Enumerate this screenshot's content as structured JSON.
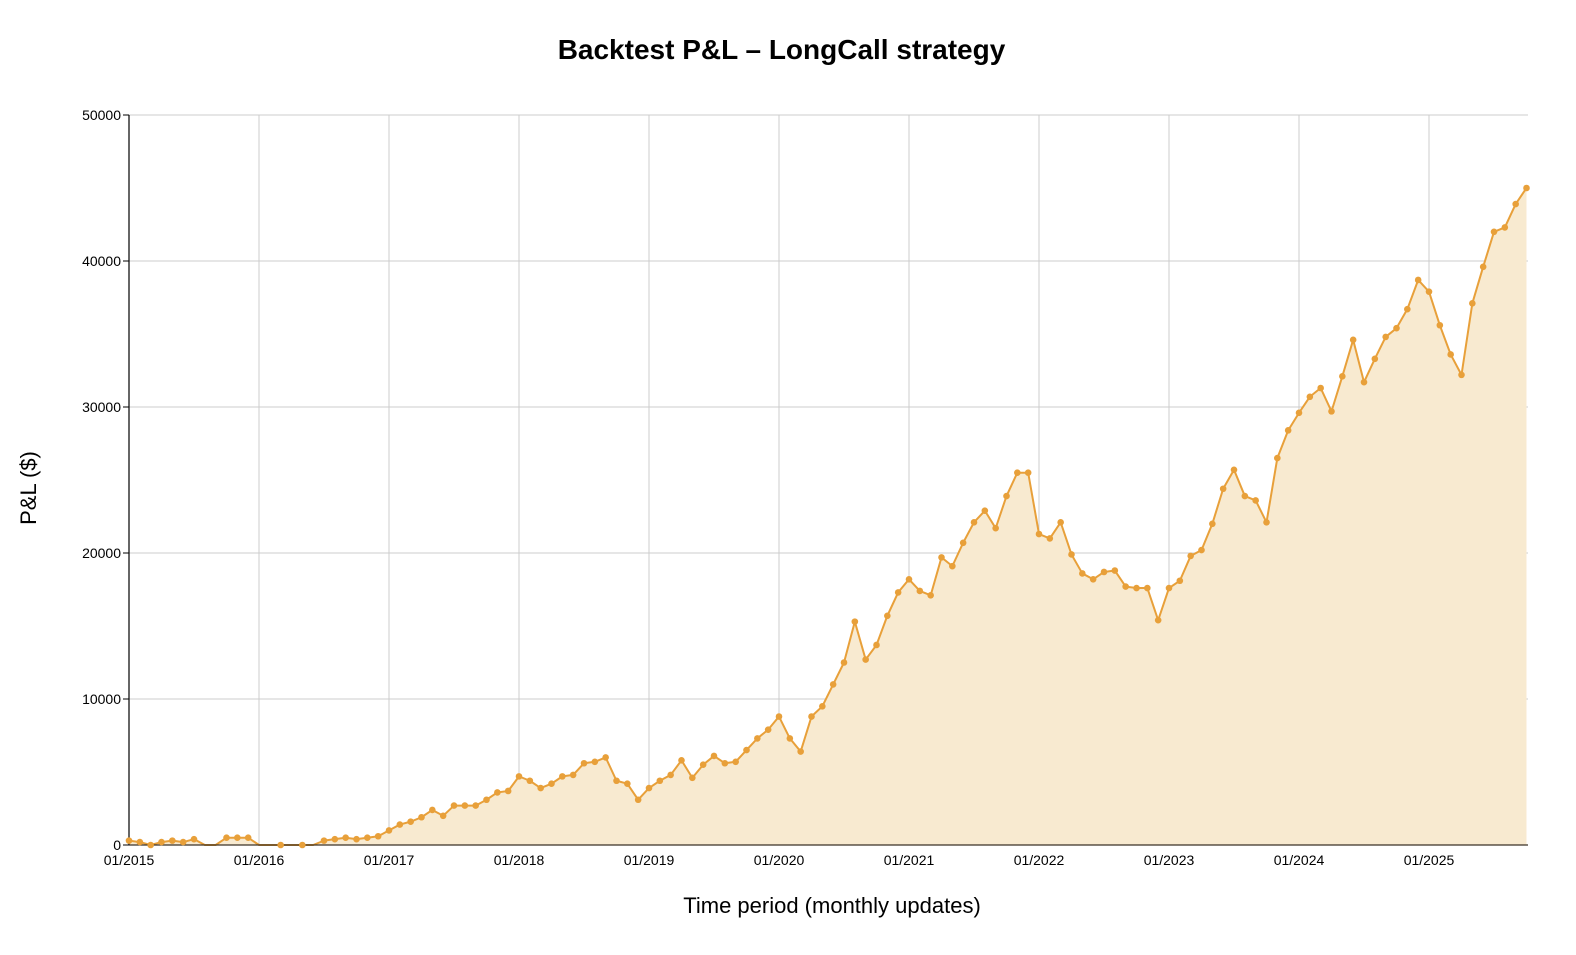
{
  "chart_data": {
    "type": "area",
    "title": "Backtest P&L – LongCall strategy",
    "xlabel": "Time period (monthly updates)",
    "ylabel": "P&L ($)",
    "ylim": [
      0,
      50000
    ],
    "yticks": [
      0,
      10000,
      20000,
      30000,
      40000,
      50000
    ],
    "xticks": [
      "01/2015",
      "01/2016",
      "01/2017",
      "01/2018",
      "01/2019",
      "01/2020",
      "01/2021",
      "01/2022",
      "01/2023",
      "01/2024",
      "01/2025"
    ],
    "grid": true,
    "legend": null,
    "line_color": "#E8A03A",
    "fill_color": "#F8EAD0",
    "series": [
      {
        "name": "P&L",
        "start": "01/2015",
        "frequency": "monthly",
        "values": [
          300,
          200,
          0,
          200,
          300,
          200,
          400,
          -200,
          -300,
          500,
          500,
          500,
          -300,
          -800,
          0,
          -300,
          0,
          -500,
          300,
          400,
          500,
          400,
          500,
          600,
          1000,
          1400,
          1600,
          1900,
          2400,
          2000,
          2700,
          2700,
          2700,
          3100,
          3600,
          3700,
          4700,
          4400,
          3900,
          4200,
          4700,
          4800,
          5600,
          5700,
          6000,
          4400,
          4200,
          3100,
          3900,
          4400,
          4800,
          5800,
          4600,
          5500,
          6100,
          5600,
          5700,
          6500,
          7300,
          7900,
          8800,
          7300,
          6400,
          8800,
          9500,
          11000,
          12500,
          15300,
          12700,
          13700,
          15700,
          17300,
          18200,
          17400,
          17100,
          19700,
          19100,
          20700,
          22100,
          22900,
          21700,
          23900,
          25500,
          25500,
          21300,
          21000,
          22100,
          19900,
          18600,
          18200,
          18700,
          18800,
          17700,
          17600,
          17600,
          15400,
          17600,
          18100,
          19800,
          20200,
          22000,
          24400,
          25700,
          23900,
          23600,
          22100,
          26500,
          28400,
          29600,
          30700,
          31300,
          29700,
          32100,
          34600,
          31700,
          33300,
          34800,
          35400,
          36700,
          38700,
          37900,
          35600,
          33600,
          32200,
          37100,
          39600,
          42000,
          42300,
          43900,
          45000
        ]
      }
    ]
  }
}
